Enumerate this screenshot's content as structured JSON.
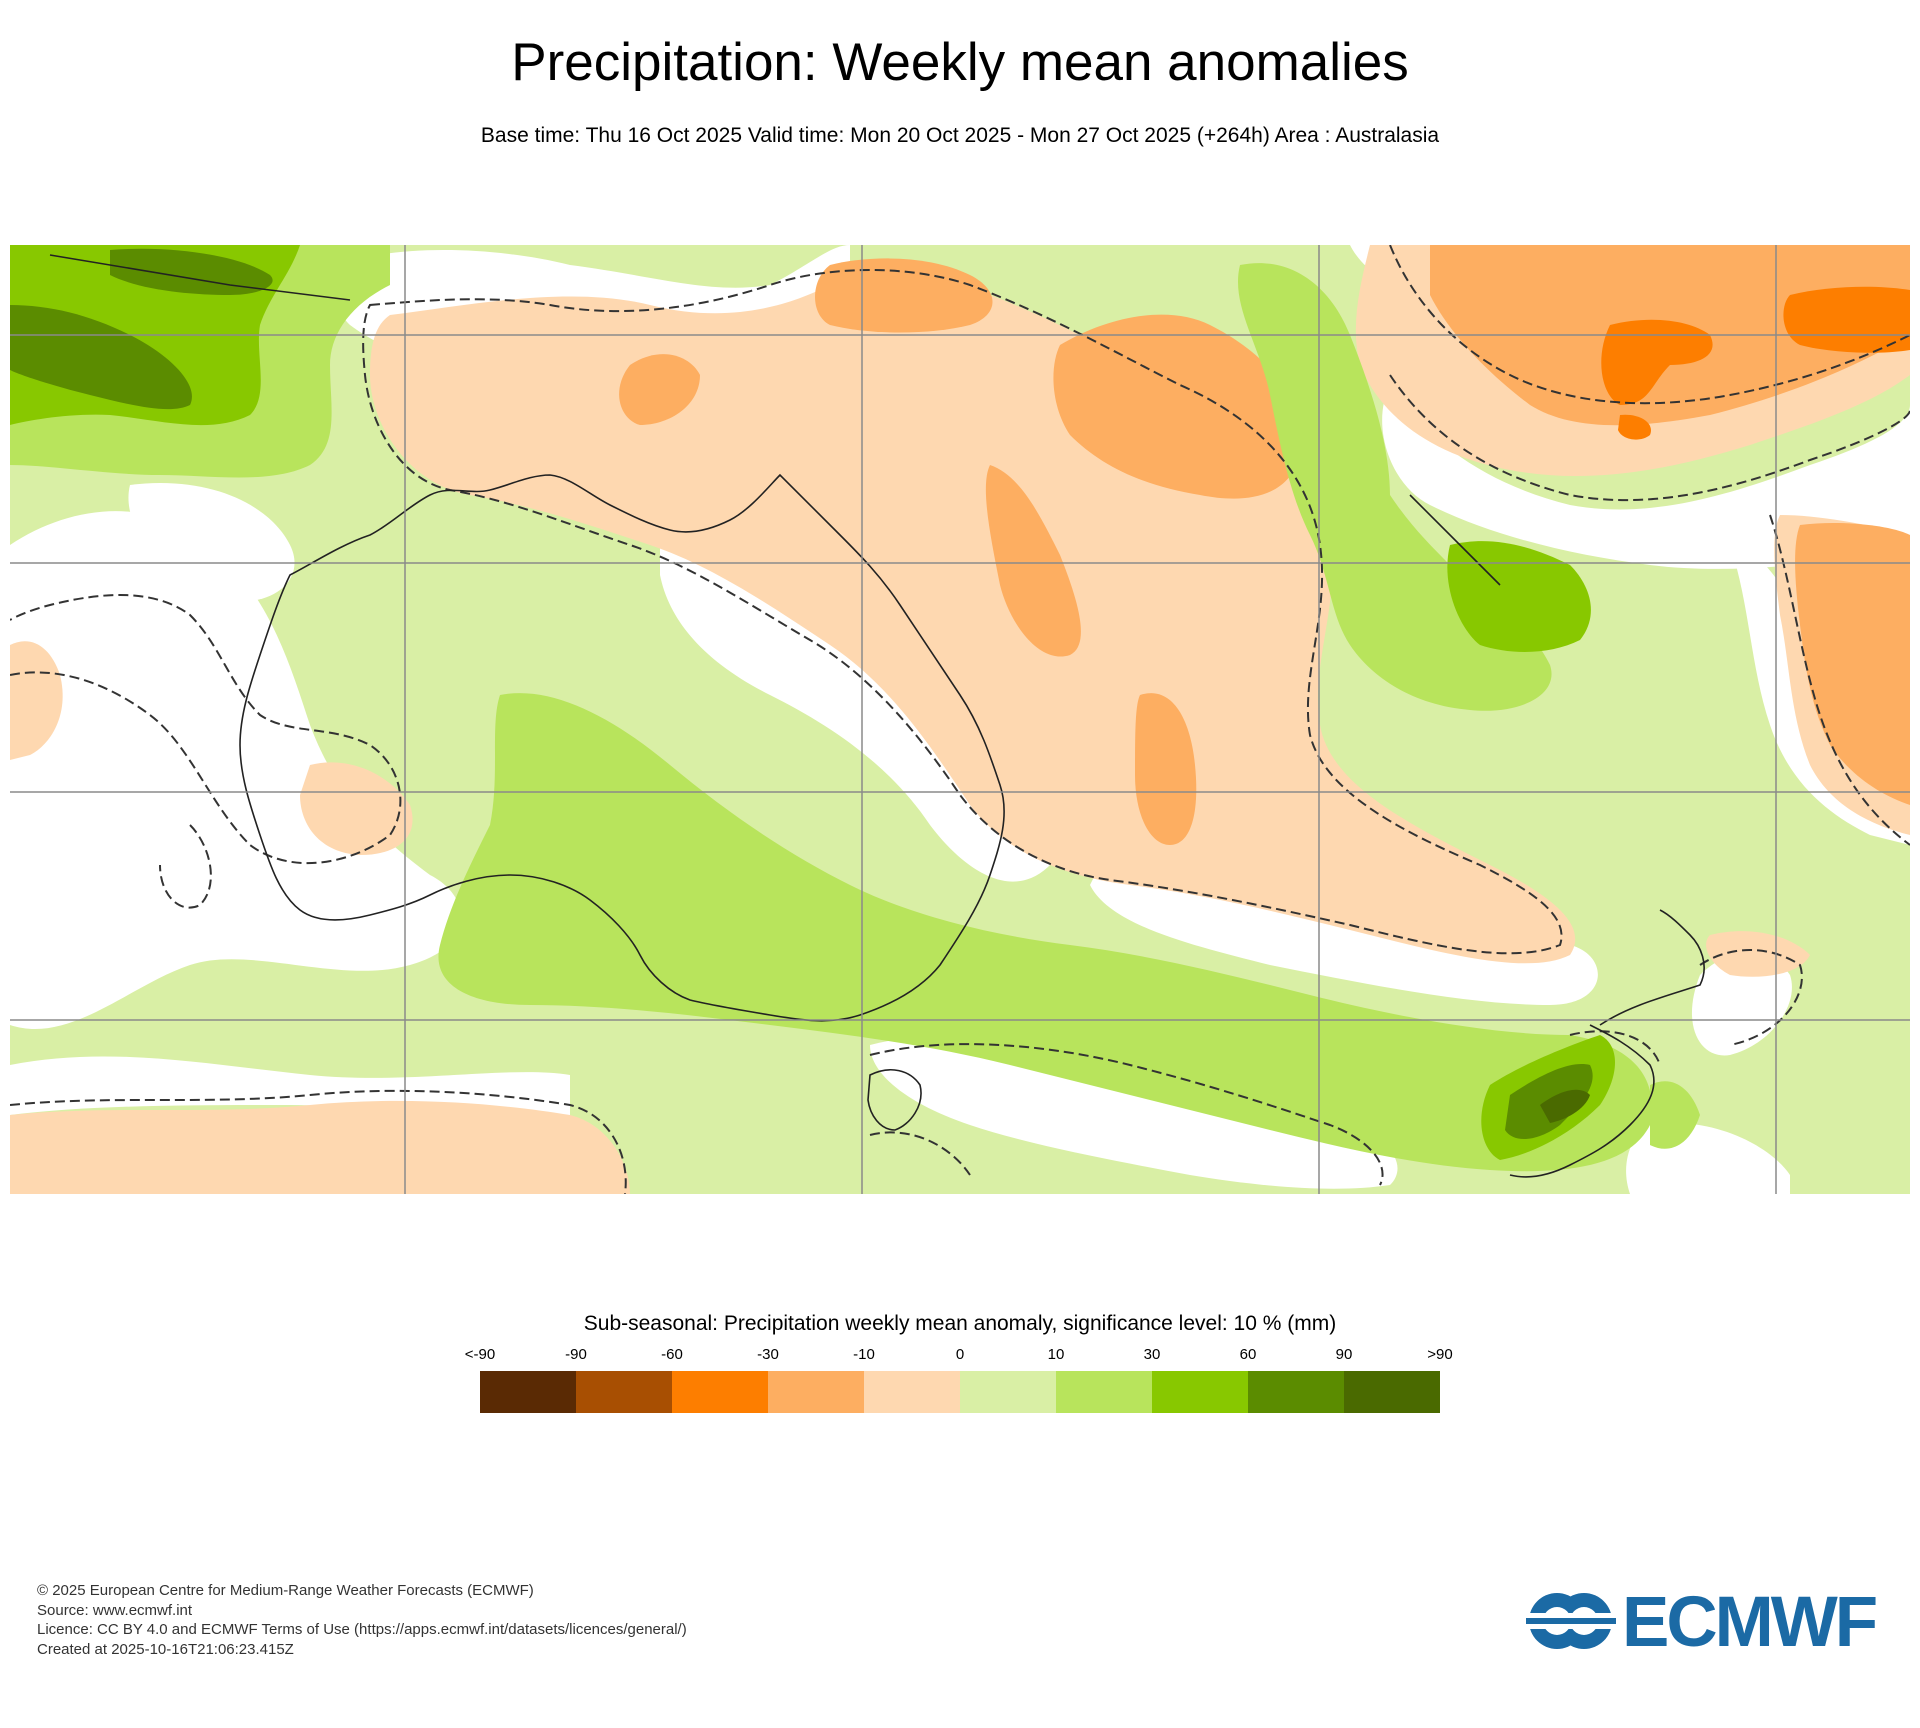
{
  "header": {
    "title": "Precipitation: Weekly mean anomalies",
    "subtitle": "Base time: Thu 16 Oct 2025 Valid time: Mon 20 Oct 2025 - Mon 27 Oct 2025 (+264h) Area : Australasia"
  },
  "map": {
    "region": "Australasia",
    "grid_lines": true,
    "coastlines": true,
    "significance_contour": "dashed"
  },
  "legend": {
    "title": "Sub-seasonal: Precipitation weekly mean anomaly, significance level: 10 % (mm)",
    "labels": [
      "<-90",
      "-90",
      "-60",
      "-30",
      "-10",
      "0",
      "10",
      "30",
      "60",
      "90",
      ">90"
    ],
    "colors": [
      "#5a2a04",
      "#a84f02",
      "#fd7e00",
      "#fdae61",
      "#fed8b0",
      "#d9efa5",
      "#b8e45c",
      "#88c800",
      "#5b8c00",
      "#4a6a00"
    ]
  },
  "footer": {
    "copyright": "© 2025 European Centre for Medium-Range Weather Forecasts (ECMWF)",
    "source": "Source: www.ecmwf.int",
    "licence": "Licence: CC BY 4.0 and ECMWF Terms of Use (https://apps.ecmwf.int/datasets/licences/general/)",
    "created": "Created at 2025-10-16T21:06:23.415Z"
  },
  "logo": {
    "text": "ECMWF",
    "color": "#1b6aa5"
  }
}
